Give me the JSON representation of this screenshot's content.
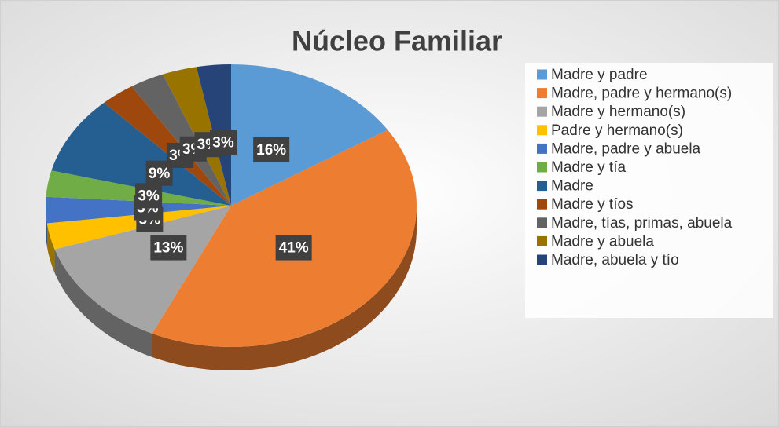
{
  "chart_data": {
    "type": "pie",
    "title": "Núcleo Familiar",
    "categories": [
      "Madre y padre",
      "Madre, padre y hermano(s)",
      "Madre y hermano(s)",
      "Padre y hermano(s)",
      "Madre, padre y abuela",
      "Madre y tía",
      "Madre",
      "Madre y tíos",
      "Madre, tías, primas, abuela",
      "Madre y abuela",
      "Madre, abuela y tío"
    ],
    "values": [
      16,
      41,
      13,
      3,
      3,
      3,
      9,
      3,
      3,
      3,
      3
    ],
    "value_labels": [
      "16%",
      "41%",
      "13%",
      "3%",
      "3%",
      "3%",
      "9%",
      "3%",
      "3%",
      "3%",
      "3%"
    ],
    "colors": [
      "#5b9bd5",
      "#ed7d31",
      "#a5a5a5",
      "#ffc000",
      "#4472c4",
      "#70ad47",
      "#255e91",
      "#9e480e",
      "#636363",
      "#997300",
      "#264478"
    ],
    "legend": "right"
  }
}
